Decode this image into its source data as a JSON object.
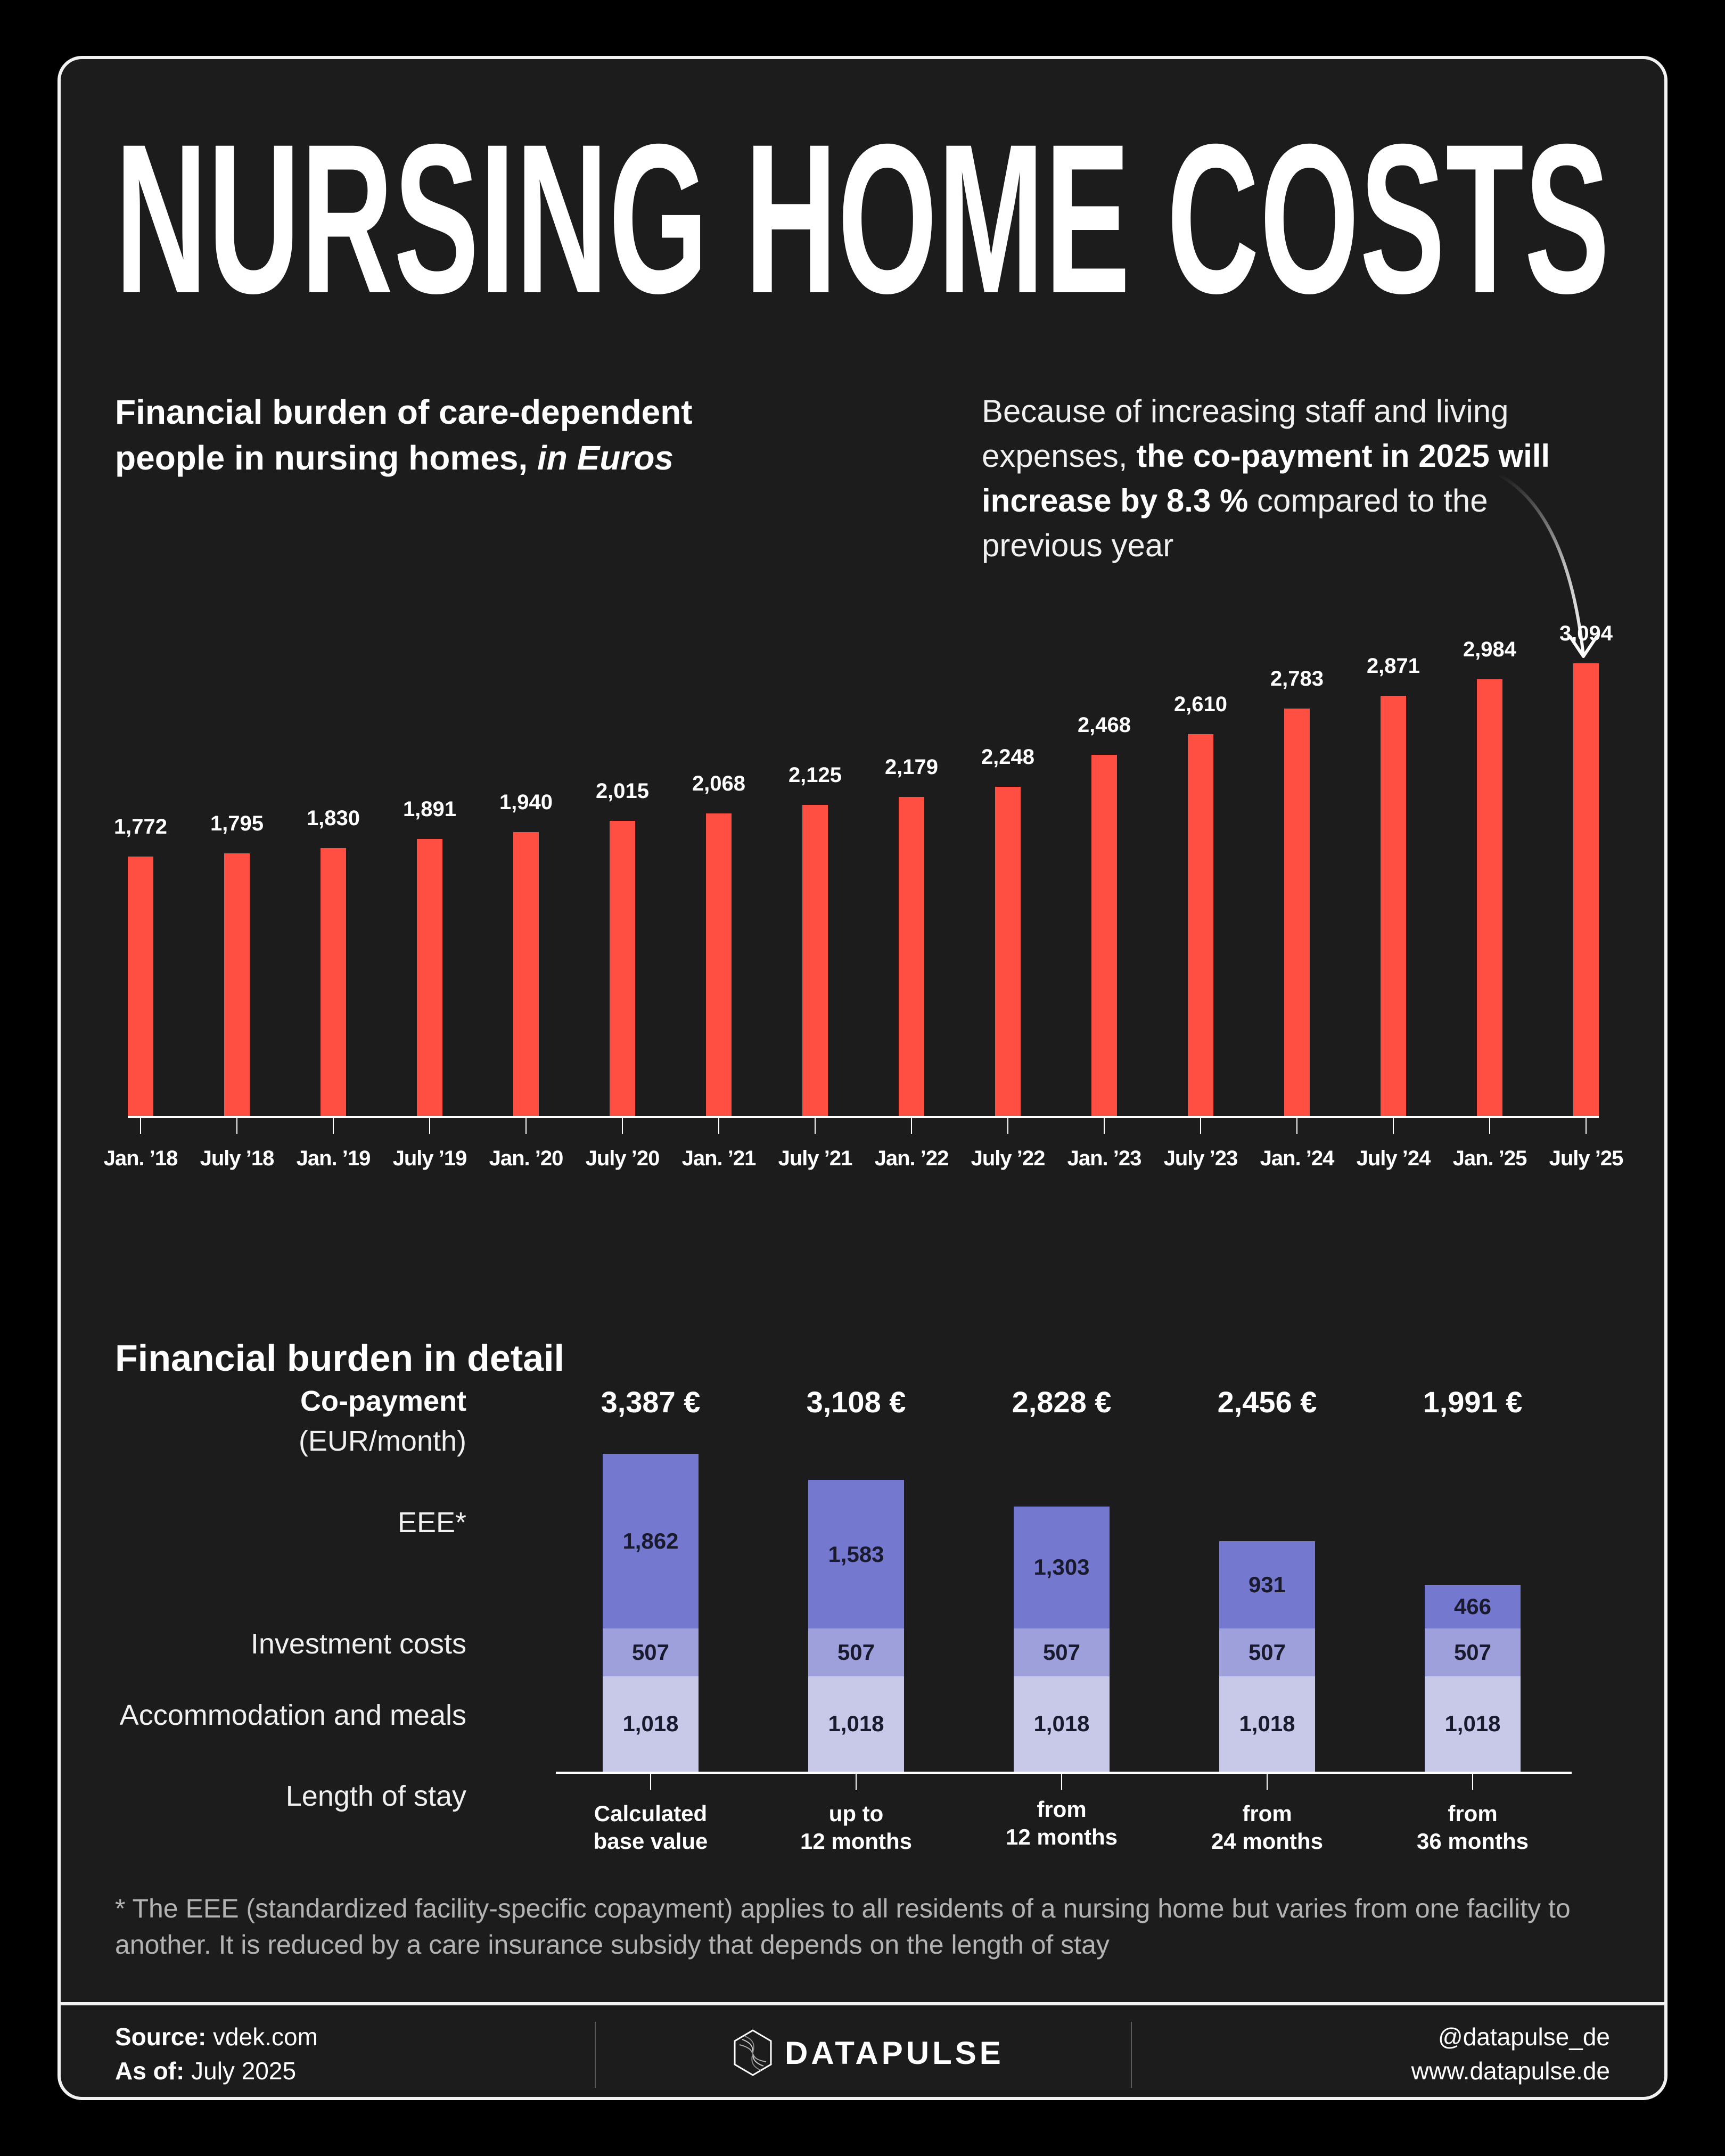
{
  "title": "NURSING HOME COSTS",
  "subtitle": {
    "line1": "Financial burden of care-dependent",
    "line2_regular": "people in nursing homes, ",
    "line2_italic": "in Euros"
  },
  "annotation": {
    "part1": "Because of increasing staff and living expenses, ",
    "bold": "the co-payment in 2025 will increase by 8.3 %",
    "part2": " compared to the previous year"
  },
  "colors": {
    "background": "#1c1c1c",
    "bar": "#ff4f42",
    "eee": "#7479cf",
    "investment": "#9ea0dc",
    "accommodation": "#c8c9e8",
    "text": "#ffffff"
  },
  "chart_data": [
    {
      "type": "bar",
      "title": "Financial burden of care-dependent people in nursing homes, in Euros",
      "xlabel": "",
      "ylabel": "Euros",
      "categories": [
        "Jan. '18",
        "July '18",
        "Jan. '19",
        "July '19",
        "Jan. '20",
        "July '20",
        "Jan. '21",
        "July '21",
        "Jan. '22",
        "July '22",
        "Jan. '23",
        "July '23",
        "Jan. '24",
        "July '24",
        "Jan. '25",
        "July '25"
      ],
      "values": [
        1772,
        1795,
        1830,
        1891,
        1940,
        2015,
        2068,
        2125,
        2179,
        2248,
        2468,
        2610,
        2783,
        2871,
        2984,
        3094
      ],
      "value_labels": [
        "1,772",
        "1,795",
        "1,830",
        "1,891",
        "1,940",
        "2,015",
        "2,068",
        "2,125",
        "2,179",
        "2,248",
        "2,468",
        "2,610",
        "2,783",
        "2,871",
        "2,984",
        "3,094"
      ],
      "ylim": [
        0,
        3094
      ],
      "grid": false,
      "legend": "none",
      "annotation": "Because of increasing staff and living expenses, the co-payment in 2025 will increase by 8.3 % compared to the previous year"
    },
    {
      "type": "bar",
      "stacked": true,
      "title": "Financial burden in detail",
      "xlabel": "Length of stay",
      "ylabel": "Co-payment (EUR/month)",
      "categories": [
        "Calculated base value",
        "up to 12 months",
        "from 12 months",
        "from 24 months",
        "from 36 months"
      ],
      "series": [
        {
          "name": "Accommodation and meals",
          "values": [
            1018,
            1018,
            1018,
            1018,
            1018
          ]
        },
        {
          "name": "Investment costs",
          "values": [
            507,
            507,
            507,
            507,
            507
          ]
        },
        {
          "name": "EEE*",
          "values": [
            1862,
            1583,
            1303,
            931,
            466
          ]
        }
      ],
      "totals": [
        3387,
        3108,
        2828,
        2456,
        1991
      ],
      "total_labels": [
        "3,387 €",
        "3,108 €",
        "2,828 €",
        "2,456 €",
        "1,991 €"
      ],
      "grid": false,
      "legend": "row labels on left"
    }
  ],
  "bar_chart": {
    "bars": [
      {
        "label": "Jan. '18",
        "value": 1772,
        "display": "1,772"
      },
      {
        "label": "July '18",
        "value": 1795,
        "display": "1,795"
      },
      {
        "label": "Jan. '19",
        "value": 1830,
        "display": "1,830"
      },
      {
        "label": "July '19",
        "value": 1891,
        "display": "1,891"
      },
      {
        "label": "Jan. '20",
        "value": 1940,
        "display": "1,940"
      },
      {
        "label": "July '20",
        "value": 2015,
        "display": "2,015"
      },
      {
        "label": "Jan. '21",
        "value": 2068,
        "display": "2,068"
      },
      {
        "label": "July '21",
        "value": 2125,
        "display": "2,125"
      },
      {
        "label": "Jan. '22",
        "value": 2179,
        "display": "2,179"
      },
      {
        "label": "July '22",
        "value": 2248,
        "display": "2,248"
      },
      {
        "label": "Jan. '23",
        "value": 2468,
        "display": "2,468"
      },
      {
        "label": "July '23",
        "value": 2610,
        "display": "2,610"
      },
      {
        "label": "Jan. '24",
        "value": 2783,
        "display": "2,783"
      },
      {
        "label": "July '24",
        "value": 2871,
        "display": "2,871"
      },
      {
        "label": "Jan. '25",
        "value": 2984,
        "display": "2,984"
      },
      {
        "label": "July '25",
        "value": 3094,
        "display": "3,094"
      }
    ]
  },
  "detail": {
    "heading": "Financial burden in detail",
    "row_labels": {
      "copayment": "Co-payment",
      "copayment_unit": "(EUR/month)",
      "eee": "EEE*",
      "investment": "Investment costs",
      "accommodation": "Accommodation and meals",
      "stay": "Length of stay"
    },
    "columns": [
      {
        "total": "3,387 €",
        "eee": 1862,
        "eee_label": "1,862",
        "inv": 507,
        "inv_label": "507",
        "acc": 1018,
        "acc_label": "1,018",
        "stay_line1": "Calculated",
        "stay_line2": "base value"
      },
      {
        "total": "3,108 €",
        "eee": 1583,
        "eee_label": "1,583",
        "inv": 507,
        "inv_label": "507",
        "acc": 1018,
        "acc_label": "1,018",
        "stay_line1": "up to",
        "stay_line2": "12 months"
      },
      {
        "total": "2,828 €",
        "eee": 1303,
        "eee_label": "1,303",
        "inv": 507,
        "inv_label": "507",
        "acc": 1018,
        "acc_label": "1,018",
        "stay_line1": "from",
        "stay_line2": "12 months"
      },
      {
        "total": "2,456 €",
        "eee": 931,
        "eee_label": "931",
        "inv": 507,
        "inv_label": "507",
        "acc": 1018,
        "acc_label": "1,018",
        "stay_line1": "from",
        "stay_line2": "24 months"
      },
      {
        "total": "1,991 €",
        "eee": 466,
        "eee_label": "466",
        "inv": 507,
        "inv_label": "507",
        "acc": 1018,
        "acc_label": "1,018",
        "stay_line1": "from",
        "stay_line2": "36 months"
      }
    ]
  },
  "footnote": "* The EEE (standardized facility-specific copayment) applies to all residents of a nursing home but varies from one facility to another. It is reduced by a care insurance subsidy that depends on the length of stay",
  "footer": {
    "source_label": "Source:",
    "source_value": " vdek.com",
    "asof_label": "As of:",
    "asof_value": " July 2025",
    "brand": "DATAPULSE",
    "handle": "@datapulse_de",
    "website": "www.datapulse.de",
    "logo_icon": "hexagon-swirl-logo-icon"
  }
}
